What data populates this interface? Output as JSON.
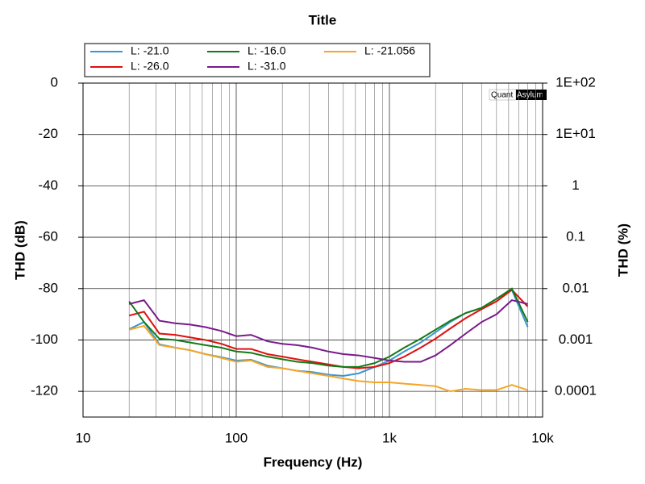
{
  "chart_data": {
    "type": "line",
    "title": "Title",
    "xlabel": "Frequency (Hz)",
    "ylabel": "THD (dB)",
    "y2label": "THD (%)",
    "watermark": {
      "left": "Quant",
      "right": "Asylum"
    },
    "xscale": "log",
    "y2scale": "log",
    "grid": true,
    "xlim": [
      10,
      10000
    ],
    "xticks": [
      10,
      100,
      {
        "value": 1000,
        "label": "1k"
      },
      {
        "value": 10000,
        "label": "10k"
      }
    ],
    "ylim": [
      -130,
      0
    ],
    "yticks": [
      0,
      -20,
      -40,
      -60,
      -80,
      -100,
      -120
    ],
    "y2lim": [
      3.162e-05,
      100
    ],
    "y2ticks": [
      {
        "value": 100,
        "label": "1E+02"
      },
      {
        "value": 10,
        "label": "1E+01"
      },
      1,
      0.1,
      0.01,
      0.001,
      0.0001
    ],
    "x": [
      20,
      25,
      31.5,
      40,
      50,
      63,
      80,
      100,
      125,
      160,
      200,
      250,
      315,
      400,
      500,
      630,
      800,
      1000,
      1250,
      1600,
      2000,
      2500,
      3150,
      4000,
      5000,
      6300,
      8000
    ],
    "series": [
      {
        "name": "L: -21.0",
        "color": "#3a97d3",
        "values": [
          -95.8,
          -93,
          -101.7,
          -103,
          -104,
          -105.5,
          -106.7,
          -108,
          -107.7,
          -110,
          -111,
          -112,
          -112.5,
          -113.5,
          -114,
          -113,
          -110.5,
          -108,
          -104.5,
          -101,
          -97,
          -93,
          -89.5,
          -87.5,
          -84,
          -80.5,
          -95
        ]
      },
      {
        "name": "L: -26.0",
        "color": "#e01010",
        "values": [
          -90.5,
          -89,
          -97.5,
          -98,
          -99,
          -100,
          -101.5,
          -103.5,
          -103.5,
          -105.5,
          -106.5,
          -107.5,
          -108.5,
          -109.5,
          -110.5,
          -111,
          -110.5,
          -109,
          -106.5,
          -103,
          -99.5,
          -95.5,
          -91.5,
          -88,
          -85,
          -80.5,
          -87
        ]
      },
      {
        "name": "L: -16.0",
        "color": "#157a15",
        "values": [
          -85,
          -93,
          -99.5,
          -100,
          -101,
          -102,
          -103,
          -104.5,
          -105,
          -106.5,
          -107.5,
          -108.5,
          -109,
          -110,
          -110.5,
          -110.5,
          -109,
          -106.5,
          -103,
          -99.5,
          -96,
          -92.5,
          -89.5,
          -87.5,
          -84,
          -80,
          -93
        ]
      },
      {
        "name": "L: -31.0",
        "color": "#7a1a8a",
        "values": [
          -86,
          -84.5,
          -92.5,
          -93.5,
          -94,
          -95,
          -96.5,
          -98.5,
          -98,
          -100.5,
          -101.5,
          -102,
          -103,
          -104.5,
          -105.5,
          -106,
          -107,
          -108,
          -108.5,
          -108.5,
          -106,
          -102,
          -97.5,
          -93,
          -90,
          -84.5,
          -86
        ]
      },
      {
        "name": "L: -21.056",
        "color": "#f5a623",
        "values": [
          -96,
          -94.5,
          -102,
          -103,
          -104,
          -105.5,
          -107,
          -108.5,
          -108,
          -110.5,
          -111,
          -112,
          -113,
          -114,
          -115,
          -116,
          -116.5,
          -116.5,
          -117,
          -117.5,
          -118,
          -120,
          -119,
          -119.5,
          -119.5,
          -117.5,
          -119.5
        ]
      }
    ]
  }
}
